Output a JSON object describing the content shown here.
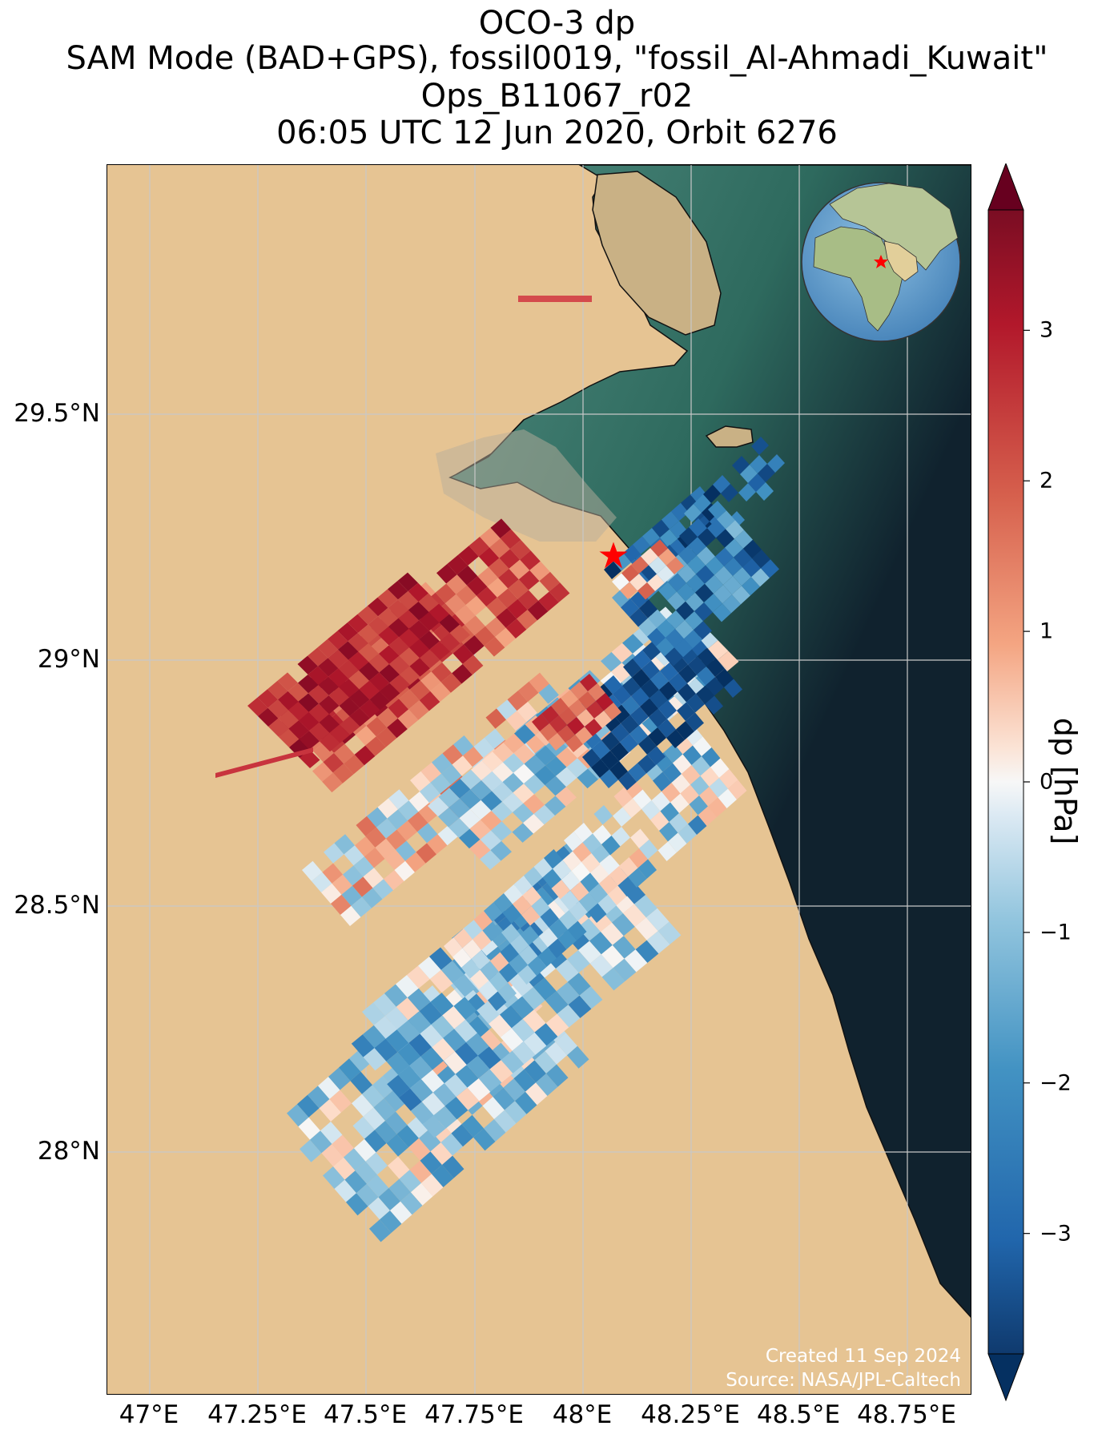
{
  "title": {
    "line1": "OCO-3 dp",
    "line2": "SAM Mode (BAD+GPS), fossil0019, \"fossil_Al-Ahmadi_Kuwait\"",
    "line3": "Ops_B11067_r02",
    "line4": "06:05 UTC 12 Jun 2020, Orbit 6276"
  },
  "map": {
    "lat_ticks": [
      "29.5°N",
      "29°N",
      "28.5°N",
      "28°N"
    ],
    "lon_ticks": [
      "47°E",
      "47.25°E",
      "47.5°E",
      "47.75°E",
      "48°E",
      "48.25°E",
      "48.5°E",
      "48.75°E"
    ],
    "target_marker": "red-star",
    "inset": "globe-locator"
  },
  "colorbar": {
    "label": "dp [hPa]",
    "ticks": [
      "3",
      "2",
      "1",
      "0",
      "−1",
      "−2",
      "−3"
    ],
    "tick_values": [
      3,
      2,
      1,
      0,
      -1,
      -2,
      -3
    ],
    "range": [
      -3.8,
      3.8
    ],
    "colormap": "RdBu_r",
    "extend": "both"
  },
  "credits": {
    "created": "Created 11 Sep 2024",
    "source": "Source: NASA/JPL-Caltech"
  },
  "colors": {
    "land": "#e6c493",
    "sea_shallow": "#2e6a5e",
    "sea_deep": "#10222e",
    "grid": "#c8c8c8",
    "marker": "#ff0000"
  }
}
